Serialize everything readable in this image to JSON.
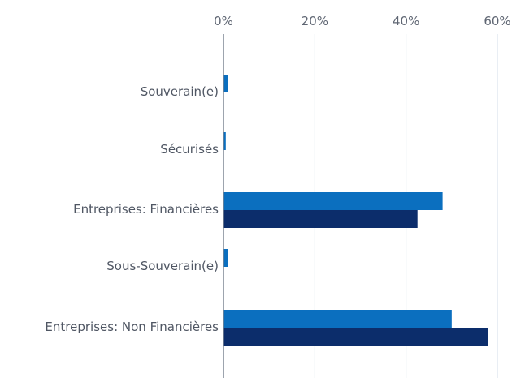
{
  "chart_data": {
    "type": "bar",
    "orientation": "horizontal",
    "title": "",
    "xlabel": "",
    "ylabel": "",
    "xlim": [
      0,
      60
    ],
    "x_ticks": [
      "0%",
      "20%",
      "40%",
      "60%"
    ],
    "x_tick_values": [
      0,
      20,
      40,
      60
    ],
    "x_axis_position": "top",
    "grid": true,
    "legend": "none",
    "categories": [
      "Souverain(e)",
      "Sécurisés",
      "Entreprises: Financières",
      "Sous-Souverain(e)",
      "Entreprises: Non Financières"
    ],
    "series": [
      {
        "values": [
          1.0,
          0.5,
          48.0,
          1.0,
          50.0
        ],
        "color": "#0b6fbf"
      },
      {
        "values": [
          0,
          0,
          42.5,
          0,
          58.0
        ],
        "color": "#0c2d6b"
      }
    ]
  }
}
